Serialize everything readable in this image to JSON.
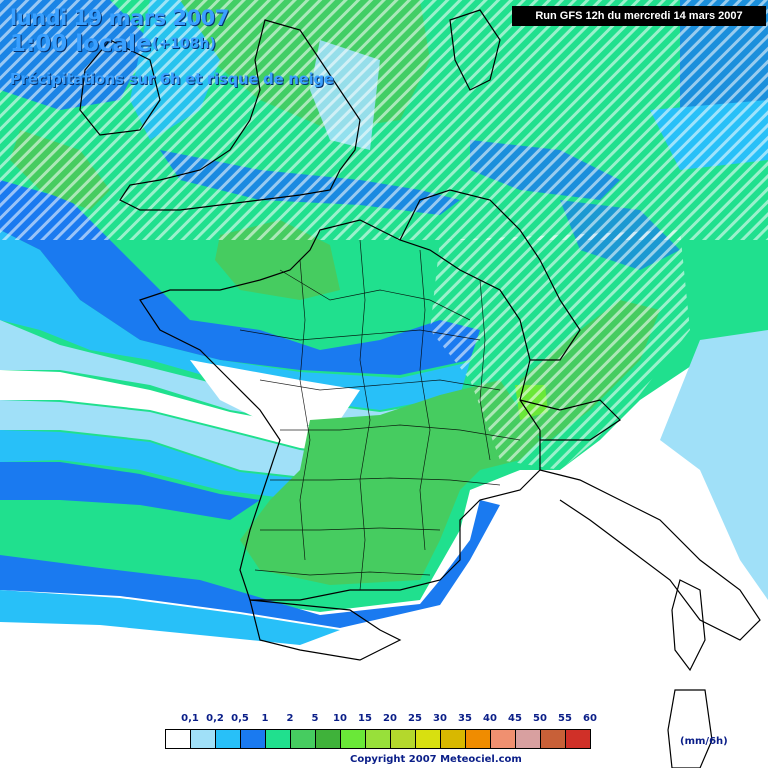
{
  "header": {
    "date_line": "lundi 19 mars 2007",
    "time_line": "1:00 locale",
    "lead_time": "(+108h)",
    "field_line": "Précipitations sur 6h et risque de neige",
    "run_info": "Run GFS 12h du mercredi 14 mars 2007"
  },
  "legend": {
    "ticks": [
      "0,1",
      "0,2",
      "0,5",
      "1",
      "2",
      "5",
      "10",
      "15",
      "20",
      "25",
      "30",
      "35",
      "40",
      "45",
      "50",
      "55",
      "60"
    ],
    "colors": [
      "#ffffff",
      "#a0e0f8",
      "#28c0f8",
      "#1a7af0",
      "#20e08e",
      "#46cc60",
      "#3fb23a",
      "#6ae838",
      "#98e03a",
      "#b4d82c",
      "#d8e010",
      "#d8b800",
      "#f08c00",
      "#f09070",
      "#d8a0a0",
      "#c86038",
      "#d03028"
    ],
    "unit": "(mm/6h)"
  },
  "footer": {
    "copyright": "Copyright 2007 Meteociel.com"
  },
  "map_colors": {
    "background": "#ffffff",
    "light_blue": "#a0e0f8",
    "cyan": "#28c0f8",
    "blue": "#1a7af0",
    "teal_green": "#20e08e",
    "green": "#46cc60",
    "dark_green": "#3fb23a",
    "lime": "#6ae838",
    "snow_hatch": "#ffffff",
    "borders": "#000000"
  }
}
